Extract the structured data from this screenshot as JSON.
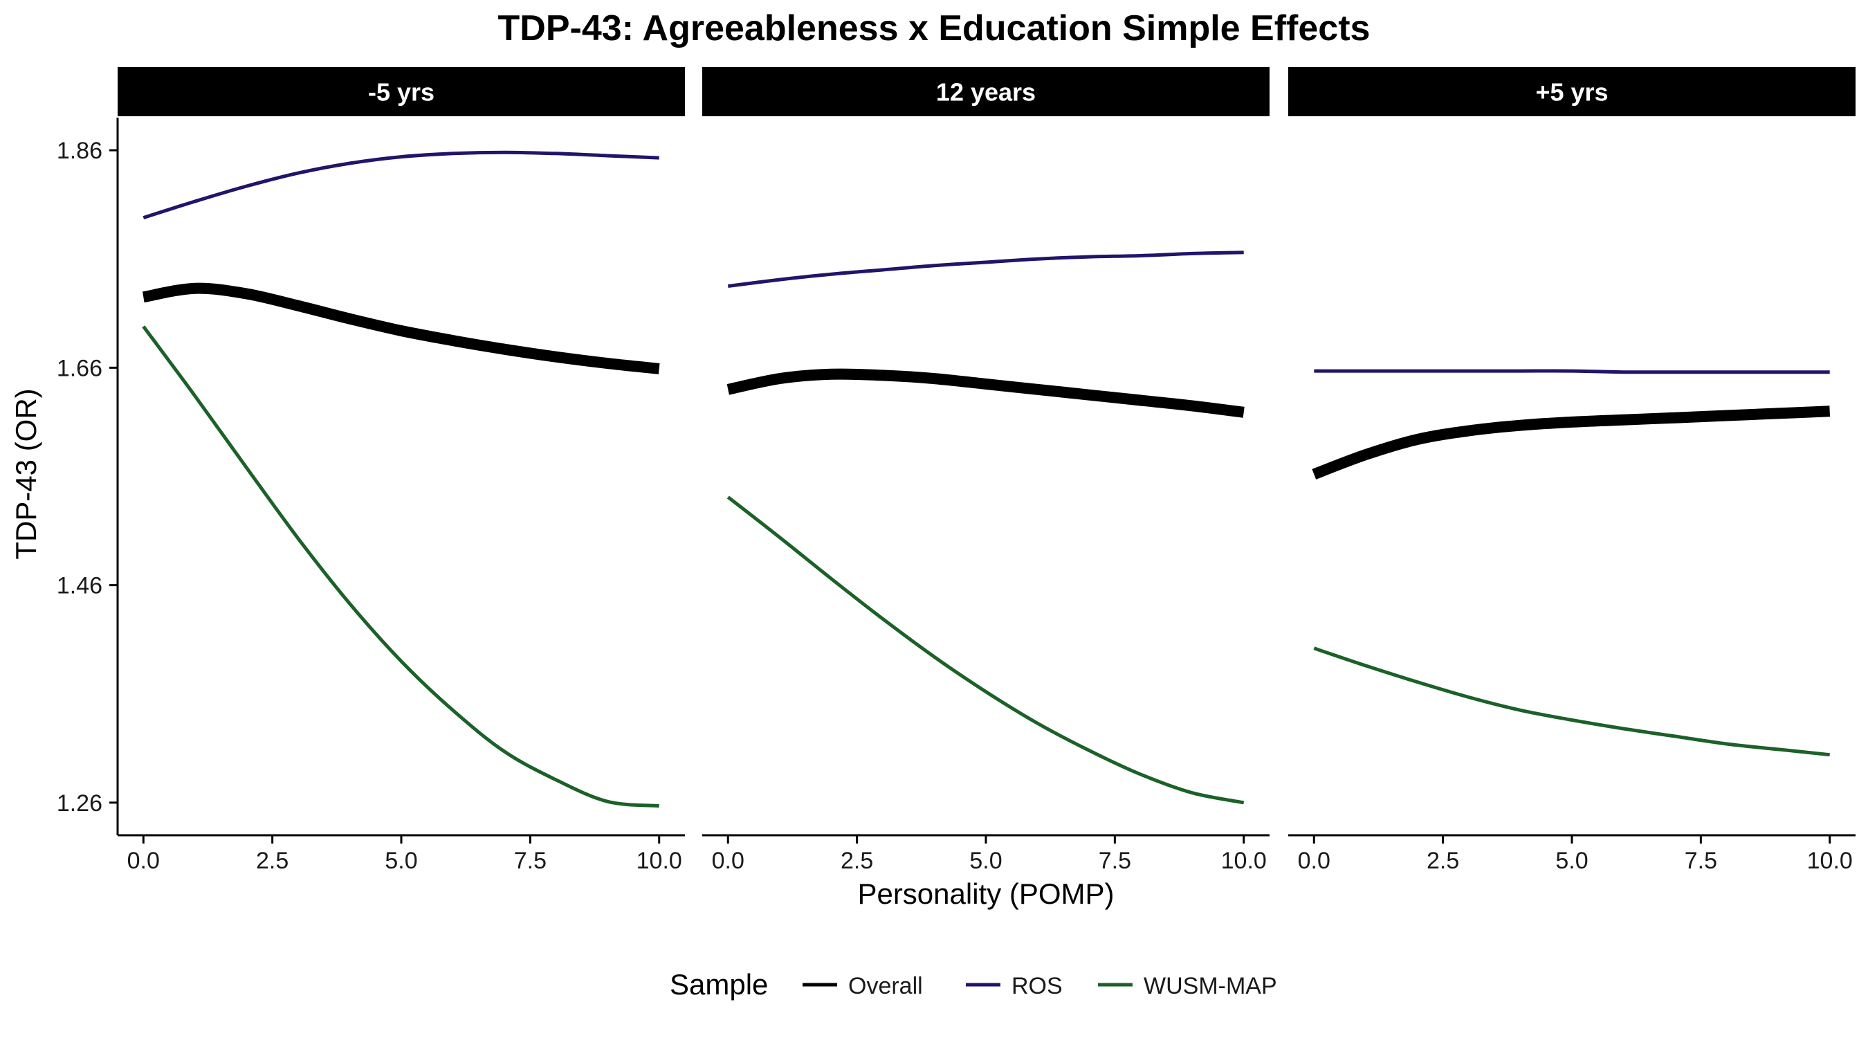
{
  "chart_data": {
    "type": "line",
    "title": "TDP-43: Agreeableness x Education Simple Effects",
    "xlabel": "Personality (POMP)",
    "ylabel": "TDP-43 (OR)",
    "xlim": [
      -0.5,
      10.5
    ],
    "ylim": [
      1.23,
      1.89
    ],
    "x_ticks": [
      0.0,
      2.5,
      5.0,
      7.5,
      10.0
    ],
    "x_tick_labels": [
      "0.0",
      "2.5",
      "5.0",
      "7.5",
      "10.0"
    ],
    "y_ticks": [
      1.26,
      1.46,
      1.66,
      1.86
    ],
    "y_tick_labels": [
      "1.26",
      "1.46",
      "1.66",
      "1.86"
    ],
    "grid": false,
    "legend": {
      "title": "Sample",
      "placement": "bottom",
      "entries": [
        "Overall",
        "ROS",
        "WUSM-MAP"
      ]
    },
    "series_styles": {
      "Overall": {
        "color": "#000000",
        "width": "thick"
      },
      "ROS": {
        "color": "#24136b",
        "width": "thin"
      },
      "WUSM-MAP": {
        "color": "#1b6128",
        "width": "thin"
      }
    },
    "x": [
      0,
      1,
      2,
      3,
      4,
      5,
      6,
      7,
      8,
      9,
      10
    ],
    "panels": [
      {
        "label": "-5 yrs",
        "series": [
          {
            "name": "Overall",
            "values": [
              1.725,
              1.733,
              1.728,
              1.717,
              1.705,
              1.694,
              1.685,
              1.677,
              1.67,
              1.664,
              1.659
            ]
          },
          {
            "name": "ROS",
            "values": [
              1.798,
              1.813,
              1.827,
              1.839,
              1.848,
              1.854,
              1.857,
              1.858,
              1.857,
              1.855,
              1.853
            ]
          },
          {
            "name": "WUSM-MAP",
            "values": [
              1.698,
              1.634,
              1.568,
              1.503,
              1.443,
              1.39,
              1.345,
              1.307,
              1.281,
              1.261,
              1.257
            ]
          }
        ]
      },
      {
        "label": "12 years",
        "series": [
          {
            "name": "Overall",
            "values": [
              1.64,
              1.65,
              1.654,
              1.653,
              1.65,
              1.645,
              1.64,
              1.635,
              1.63,
              1.625,
              1.619
            ]
          },
          {
            "name": "ROS",
            "values": [
              1.735,
              1.741,
              1.746,
              1.75,
              1.754,
              1.757,
              1.76,
              1.762,
              1.763,
              1.765,
              1.766
            ]
          },
          {
            "name": "WUSM-MAP",
            "values": [
              1.541,
              1.504,
              1.466,
              1.429,
              1.394,
              1.362,
              1.333,
              1.308,
              1.286,
              1.269,
              1.26
            ]
          }
        ]
      },
      {
        "label": "+5 yrs",
        "series": [
          {
            "name": "Overall",
            "values": [
              1.562,
              1.58,
              1.594,
              1.602,
              1.607,
              1.61,
              1.612,
              1.614,
              1.616,
              1.618,
              1.62
            ]
          },
          {
            "name": "ROS",
            "values": [
              1.657,
              1.657,
              1.657,
              1.657,
              1.657,
              1.657,
              1.656,
              1.656,
              1.656,
              1.656,
              1.656
            ]
          },
          {
            "name": "WUSM-MAP",
            "values": [
              1.402,
              1.386,
              1.371,
              1.357,
              1.345,
              1.336,
              1.328,
              1.321,
              1.314,
              1.309,
              1.304
            ]
          }
        ]
      }
    ]
  }
}
